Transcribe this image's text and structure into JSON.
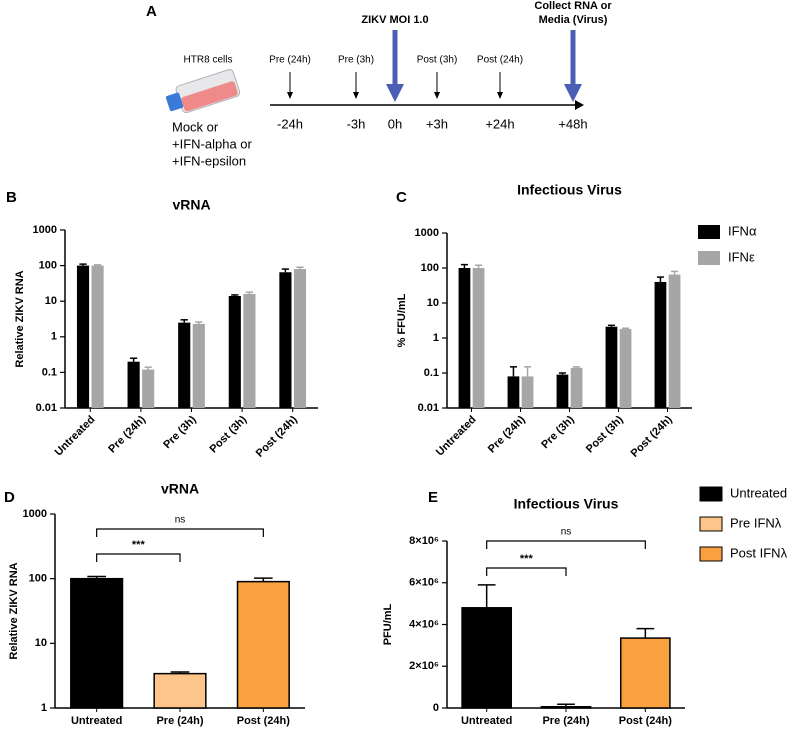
{
  "panel_a": {
    "panel": "A",
    "cells": "HTR8 cells",
    "treatment": [
      "Mock or",
      "+IFN-alpha or",
      "+IFN-epsilon"
    ],
    "timeline": [
      {
        "label": [
          "Pre (24h)"
        ],
        "time": "-24h",
        "emphasis": false
      },
      {
        "label": [
          "Pre (3h)"
        ],
        "time": "-3h",
        "emphasis": false
      },
      {
        "label": [
          "ZIKV MOI 1.0"
        ],
        "time": "0h",
        "emphasis": true
      },
      {
        "label": [
          "Post (3h)"
        ],
        "time": "+3h",
        "emphasis": false
      },
      {
        "label": [
          "Post (24h)"
        ],
        "time": "+24h",
        "emphasis": false
      },
      {
        "label": [
          "Collect RNA or",
          "Media (Virus)"
        ],
        "time": "+48h",
        "emphasis": true
      }
    ]
  },
  "chart_data": [
    {
      "type": "bar",
      "panel": "B",
      "title": "vRNA",
      "y_label": "Relative ZIKV RNA",
      "log_scale": true,
      "xtick_rotation": 45,
      "categories": [
        "Untreated",
        "Pre (24h)",
        "Pre (3h)",
        "Post (3h)",
        "Post (24h)"
      ],
      "series": [
        {
          "name": "IFNα",
          "color": "#000000",
          "values": [
            100,
            0.2,
            2.5,
            14,
            65
          ],
          "errors": [
            10,
            0.05,
            0.5,
            1,
            15
          ]
        },
        {
          "name": "IFNε",
          "color": "#a6a6a6",
          "values": [
            100,
            0.12,
            2.3,
            16,
            80
          ],
          "errors": [
            5,
            0.02,
            0.3,
            2,
            10
          ]
        }
      ],
      "ylim": [
        0.01,
        1000
      ],
      "yticks": [
        0.01,
        0.1,
        1,
        10,
        100,
        1000
      ]
    },
    {
      "type": "bar",
      "panel": "C",
      "title": "Infectious Virus",
      "y_label": "% FFU/mL",
      "log_scale": true,
      "xtick_rotation": 45,
      "legend": "right",
      "categories": [
        "Untreated",
        "Pre (24h)",
        "Pre (3h)",
        "Post (3h)",
        "Post (24h)"
      ],
      "series": [
        {
          "name": "IFNα",
          "color": "#000000",
          "values": [
            100,
            0.08,
            0.09,
            2.1,
            40
          ],
          "errors": [
            25,
            0.07,
            0.01,
            0.2,
            15
          ]
        },
        {
          "name": "IFNε",
          "color": "#a6a6a6",
          "values": [
            100,
            0.08,
            0.14,
            1.8,
            65
          ],
          "errors": [
            20,
            0.07,
            0.01,
            0.1,
            15
          ]
        }
      ],
      "ylim": [
        0.01,
        1000
      ],
      "yticks": [
        0.01,
        0.1,
        1,
        10,
        100,
        1000
      ]
    },
    {
      "type": "bar",
      "panel": "D",
      "title": "vRNA",
      "y_label": "Relative ZIKV RNA",
      "log_scale": true,
      "categories": [
        "Untreated",
        "Pre (24h)",
        "Post (24h)"
      ],
      "values": [
        100,
        3.4,
        90
      ],
      "errors": [
        8,
        0.2,
        12
      ],
      "colors": [
        "#000000",
        "#fdc58a",
        "#f9a040"
      ],
      "annotations": [
        {
          "text": "ns",
          "from": 0,
          "to": 2
        },
        {
          "text": "***",
          "from": 0,
          "to": 1
        }
      ],
      "ylim": [
        1,
        1000
      ],
      "yticks": [
        1,
        10,
        100,
        1000
      ]
    },
    {
      "type": "bar",
      "panel": "E",
      "title": "Infectious Virus",
      "y_label": "PFU/mL",
      "log_scale": false,
      "legend": "right",
      "categories": [
        "Untreated",
        "Pre (24h)",
        "Post (24h)"
      ],
      "values": [
        4800000,
        60000,
        3350000
      ],
      "errors": [
        1100000,
        120000,
        450000
      ],
      "colors": [
        "#000000",
        "#fdc58a",
        "#f9a040"
      ],
      "legend_labels": [
        "Untreated",
        "Pre IFNλ",
        "Post IFNλ"
      ],
      "annotations": [
        {
          "text": "ns",
          "from": 0,
          "to": 2
        },
        {
          "text": "***",
          "from": 0,
          "to": 1
        }
      ],
      "ylim": [
        0,
        8000000
      ],
      "yticks": [
        0,
        {
          "value": 2000000,
          "label": "2×10⁶"
        },
        {
          "value": 4000000,
          "label": "4×10⁶"
        },
        {
          "value": 6000000,
          "label": "6×10⁶"
        },
        {
          "value": 8000000,
          "label": "8×10⁶"
        }
      ]
    }
  ]
}
